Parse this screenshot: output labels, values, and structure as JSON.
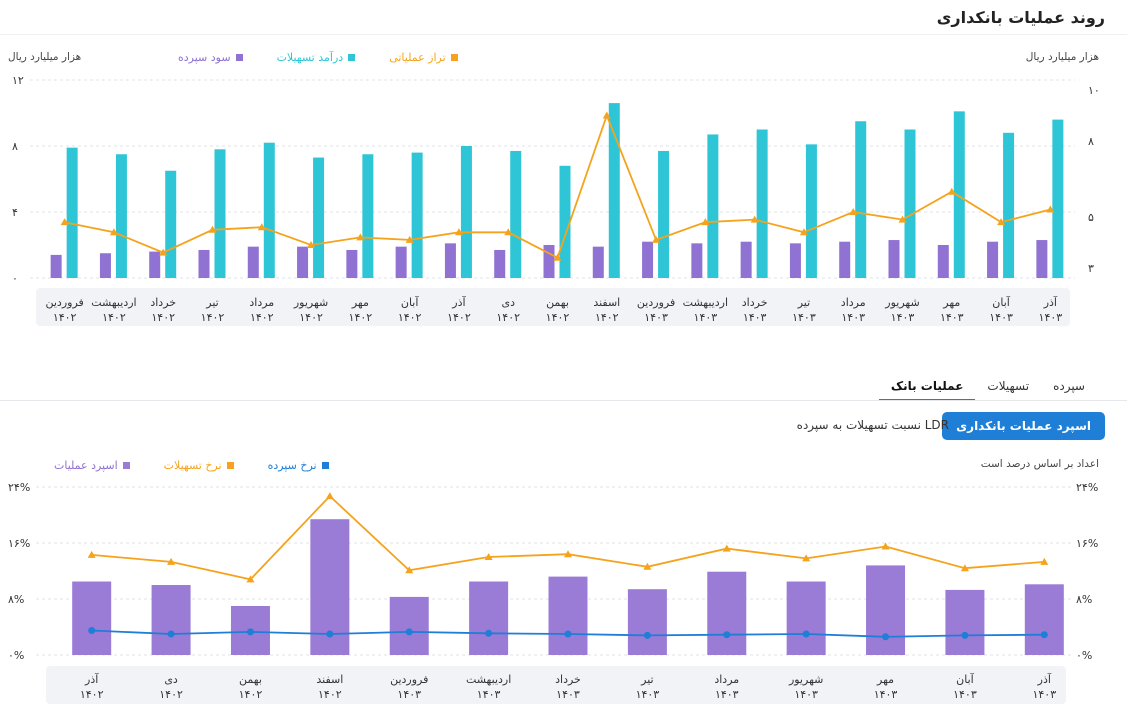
{
  "page": {
    "title": "روند عملیات بانکداری"
  },
  "chart1": {
    "left_unit": "هزار میلیارد ریال",
    "right_unit": "هزار میلیارد ریال",
    "legend": [
      {
        "label": "تراز عملیاتی",
        "color": "#f5a31c"
      },
      {
        "label": "درآمد تسهیلات",
        "color": "#2ec6d6"
      },
      {
        "label": "سود سپرده",
        "color": "#8f72d1"
      }
    ]
  },
  "tabs": [
    {
      "label": "سپرده",
      "active": false
    },
    {
      "label": "تسهیلات",
      "active": false
    },
    {
      "label": "عملیات بانک",
      "active": true
    }
  ],
  "toolbar": {
    "primary_label": "اسپرد عملیات بانکداری",
    "secondary_label": "نسبت تسهیلات به سپرده LDR"
  },
  "chart2": {
    "note": "اعداد بر اساس درصد است",
    "legend": [
      {
        "label": "اسپرد عملیات",
        "color": "#9a7bd6"
      },
      {
        "label": "نرخ تسهیلات",
        "color": "#f5a31c"
      },
      {
        "label": "نرخ سپرده",
        "color": "#1f7ed6"
      }
    ]
  },
  "chart_data": [
    {
      "type": "bar",
      "title": "",
      "categories": [
        "فروردین ۱۴۰۲",
        "اردیبهشت ۱۴۰۲",
        "خرداد ۱۴۰۲",
        "تیر ۱۴۰۲",
        "مرداد ۱۴۰۲",
        "شهریور ۱۴۰۲",
        "مهر ۱۴۰۲",
        "آبان ۱۴۰۲",
        "آذر ۱۴۰۲",
        "دی ۱۴۰۲",
        "بهمن ۱۴۰۲",
        "اسفند ۱۴۰۲",
        "فروردین ۱۴۰۳",
        "اردیبهشت ۱۴۰۳",
        "خرداد ۱۴۰۳",
        "تیر ۱۴۰۳",
        "مرداد ۱۴۰۳",
        "شهریور ۱۴۰۳",
        "مهر ۱۴۰۳",
        "آبان ۱۴۰۳",
        "آذر ۱۴۰۳"
      ],
      "category_labels": [
        [
          "فروردین",
          "۱۴۰۲"
        ],
        [
          "اردیبهشت",
          "۱۴۰۲"
        ],
        [
          "خرداد",
          "۱۴۰۲"
        ],
        [
          "تیر",
          "۱۴۰۲"
        ],
        [
          "مرداد",
          "۱۴۰۲"
        ],
        [
          "شهریور",
          "۱۴۰۲"
        ],
        [
          "مهر",
          "۱۴۰۲"
        ],
        [
          "آبان",
          "۱۴۰۲"
        ],
        [
          "آذر",
          "۱۴۰۲"
        ],
        [
          "دی",
          "۱۴۰۲"
        ],
        [
          "بهمن",
          "۱۴۰۲"
        ],
        [
          "اسفند",
          "۱۴۰۲"
        ],
        [
          "فروردین",
          "۱۴۰۳"
        ],
        [
          "اردیبهشت",
          "۱۴۰۳"
        ],
        [
          "خرداد",
          "۱۴۰۳"
        ],
        [
          "تیر",
          "۱۴۰۳"
        ],
        [
          "مرداد",
          "۱۴۰۳"
        ],
        [
          "شهریور",
          "۱۴۰۳"
        ],
        [
          "مهر",
          "۱۴۰۳"
        ],
        [
          "آبان",
          "۱۴۰۳"
        ],
        [
          "آذر",
          "۱۴۰۳"
        ]
      ],
      "series": [
        {
          "name": "درآمد تسهیلات",
          "kind": "bar",
          "axis": "left",
          "color": "#2ec6d6",
          "values": [
            7.9,
            7.5,
            6.5,
            7.8,
            8.2,
            7.3,
            7.5,
            7.6,
            8.0,
            7.7,
            6.8,
            10.6,
            7.7,
            8.7,
            9.0,
            8.1,
            9.5,
            9.0,
            10.1,
            8.8,
            9.6
          ]
        },
        {
          "name": "سود سپرده",
          "kind": "bar",
          "axis": "left",
          "color": "#8f72d1",
          "values": [
            1.4,
            1.5,
            1.6,
            1.7,
            1.9,
            1.9,
            1.7,
            1.9,
            2.1,
            1.7,
            2.0,
            1.9,
            2.2,
            2.1,
            2.2,
            2.1,
            2.2,
            2.3,
            2.0,
            2.2,
            2.3
          ]
        },
        {
          "name": "تراز عملیاتی",
          "kind": "line",
          "axis": "right",
          "color": "#f5a31c",
          "values": [
            4.8,
            4.4,
            3.6,
            4.5,
            4.6,
            3.9,
            4.2,
            4.1,
            4.4,
            4.4,
            3.4,
            9.0,
            4.1,
            4.8,
            4.9,
            4.4,
            5.2,
            4.9,
            6.0,
            4.8,
            5.3
          ]
        }
      ],
      "left_axis": {
        "ticks": [
          0,
          4,
          8,
          12
        ],
        "tick_labels": [
          "۰",
          "۴",
          "۸",
          "۱۲"
        ],
        "ylim": [
          0,
          12
        ]
      },
      "right_axis": {
        "ticks": [
          3,
          5,
          8,
          10
        ],
        "tick_labels": [
          "۳",
          "۵",
          "۸",
          "۱۰"
        ],
        "ylim": [
          2.6,
          10.4
        ]
      },
      "grid": true,
      "legend_position": "top-left"
    },
    {
      "type": "bar",
      "title": "",
      "categories": [
        "آذر ۱۴۰۲",
        "دی ۱۴۰۲",
        "بهمن ۱۴۰۲",
        "اسفند ۱۴۰۲",
        "فروردین ۱۴۰۳",
        "اردیبهشت ۱۴۰۳",
        "خرداد ۱۴۰۳",
        "تیر ۱۴۰۳",
        "مرداد ۱۴۰۳",
        "شهریور ۱۴۰۳",
        "مهر ۱۴۰۳",
        "آبان ۱۴۰۳",
        "آذر ۱۴۰۳"
      ],
      "category_labels": [
        [
          "آذر",
          "۱۴۰۲"
        ],
        [
          "دی",
          "۱۴۰۲"
        ],
        [
          "بهمن",
          "۱۴۰۲"
        ],
        [
          "اسفند",
          "۱۴۰۲"
        ],
        [
          "فروردین",
          "۱۴۰۳"
        ],
        [
          "اردیبهشت",
          "۱۴۰۳"
        ],
        [
          "خرداد",
          "۱۴۰۳"
        ],
        [
          "تیر",
          "۱۴۰۳"
        ],
        [
          "مرداد",
          "۱۴۰۳"
        ],
        [
          "شهریور",
          "۱۴۰۳"
        ],
        [
          "مهر",
          "۱۴۰۳"
        ],
        [
          "آبان",
          "۱۴۰۳"
        ],
        [
          "آذر",
          "۱۴۰۳"
        ]
      ],
      "series": [
        {
          "name": "اسپرد عملیات",
          "kind": "bar",
          "color": "#9a7bd6",
          "values": [
            10.5,
            10.0,
            7.0,
            19.4,
            8.3,
            10.5,
            11.2,
            9.4,
            11.9,
            10.5,
            12.8,
            9.3,
            10.1
          ]
        },
        {
          "name": "نرخ تسهیلات",
          "kind": "line",
          "color": "#f5a31c",
          "values": [
            14.3,
            13.3,
            10.8,
            22.7,
            12.1,
            14.0,
            14.4,
            12.6,
            15.2,
            13.8,
            15.5,
            12.4,
            13.3
          ]
        },
        {
          "name": "نرخ سپرده",
          "kind": "line",
          "color": "#1f7ed6",
          "values": [
            3.5,
            3.0,
            3.3,
            3.0,
            3.3,
            3.1,
            3.0,
            2.8,
            2.9,
            3.0,
            2.6,
            2.8,
            2.9
          ]
        }
      ],
      "axis": {
        "ticks": [
          0,
          8,
          16,
          24
        ],
        "tick_labels": [
          "۰%",
          "۸%",
          "۱۶%",
          "۲۴%"
        ],
        "ylim": [
          0,
          24
        ]
      },
      "grid": true,
      "legend_position": "top-left"
    }
  ]
}
